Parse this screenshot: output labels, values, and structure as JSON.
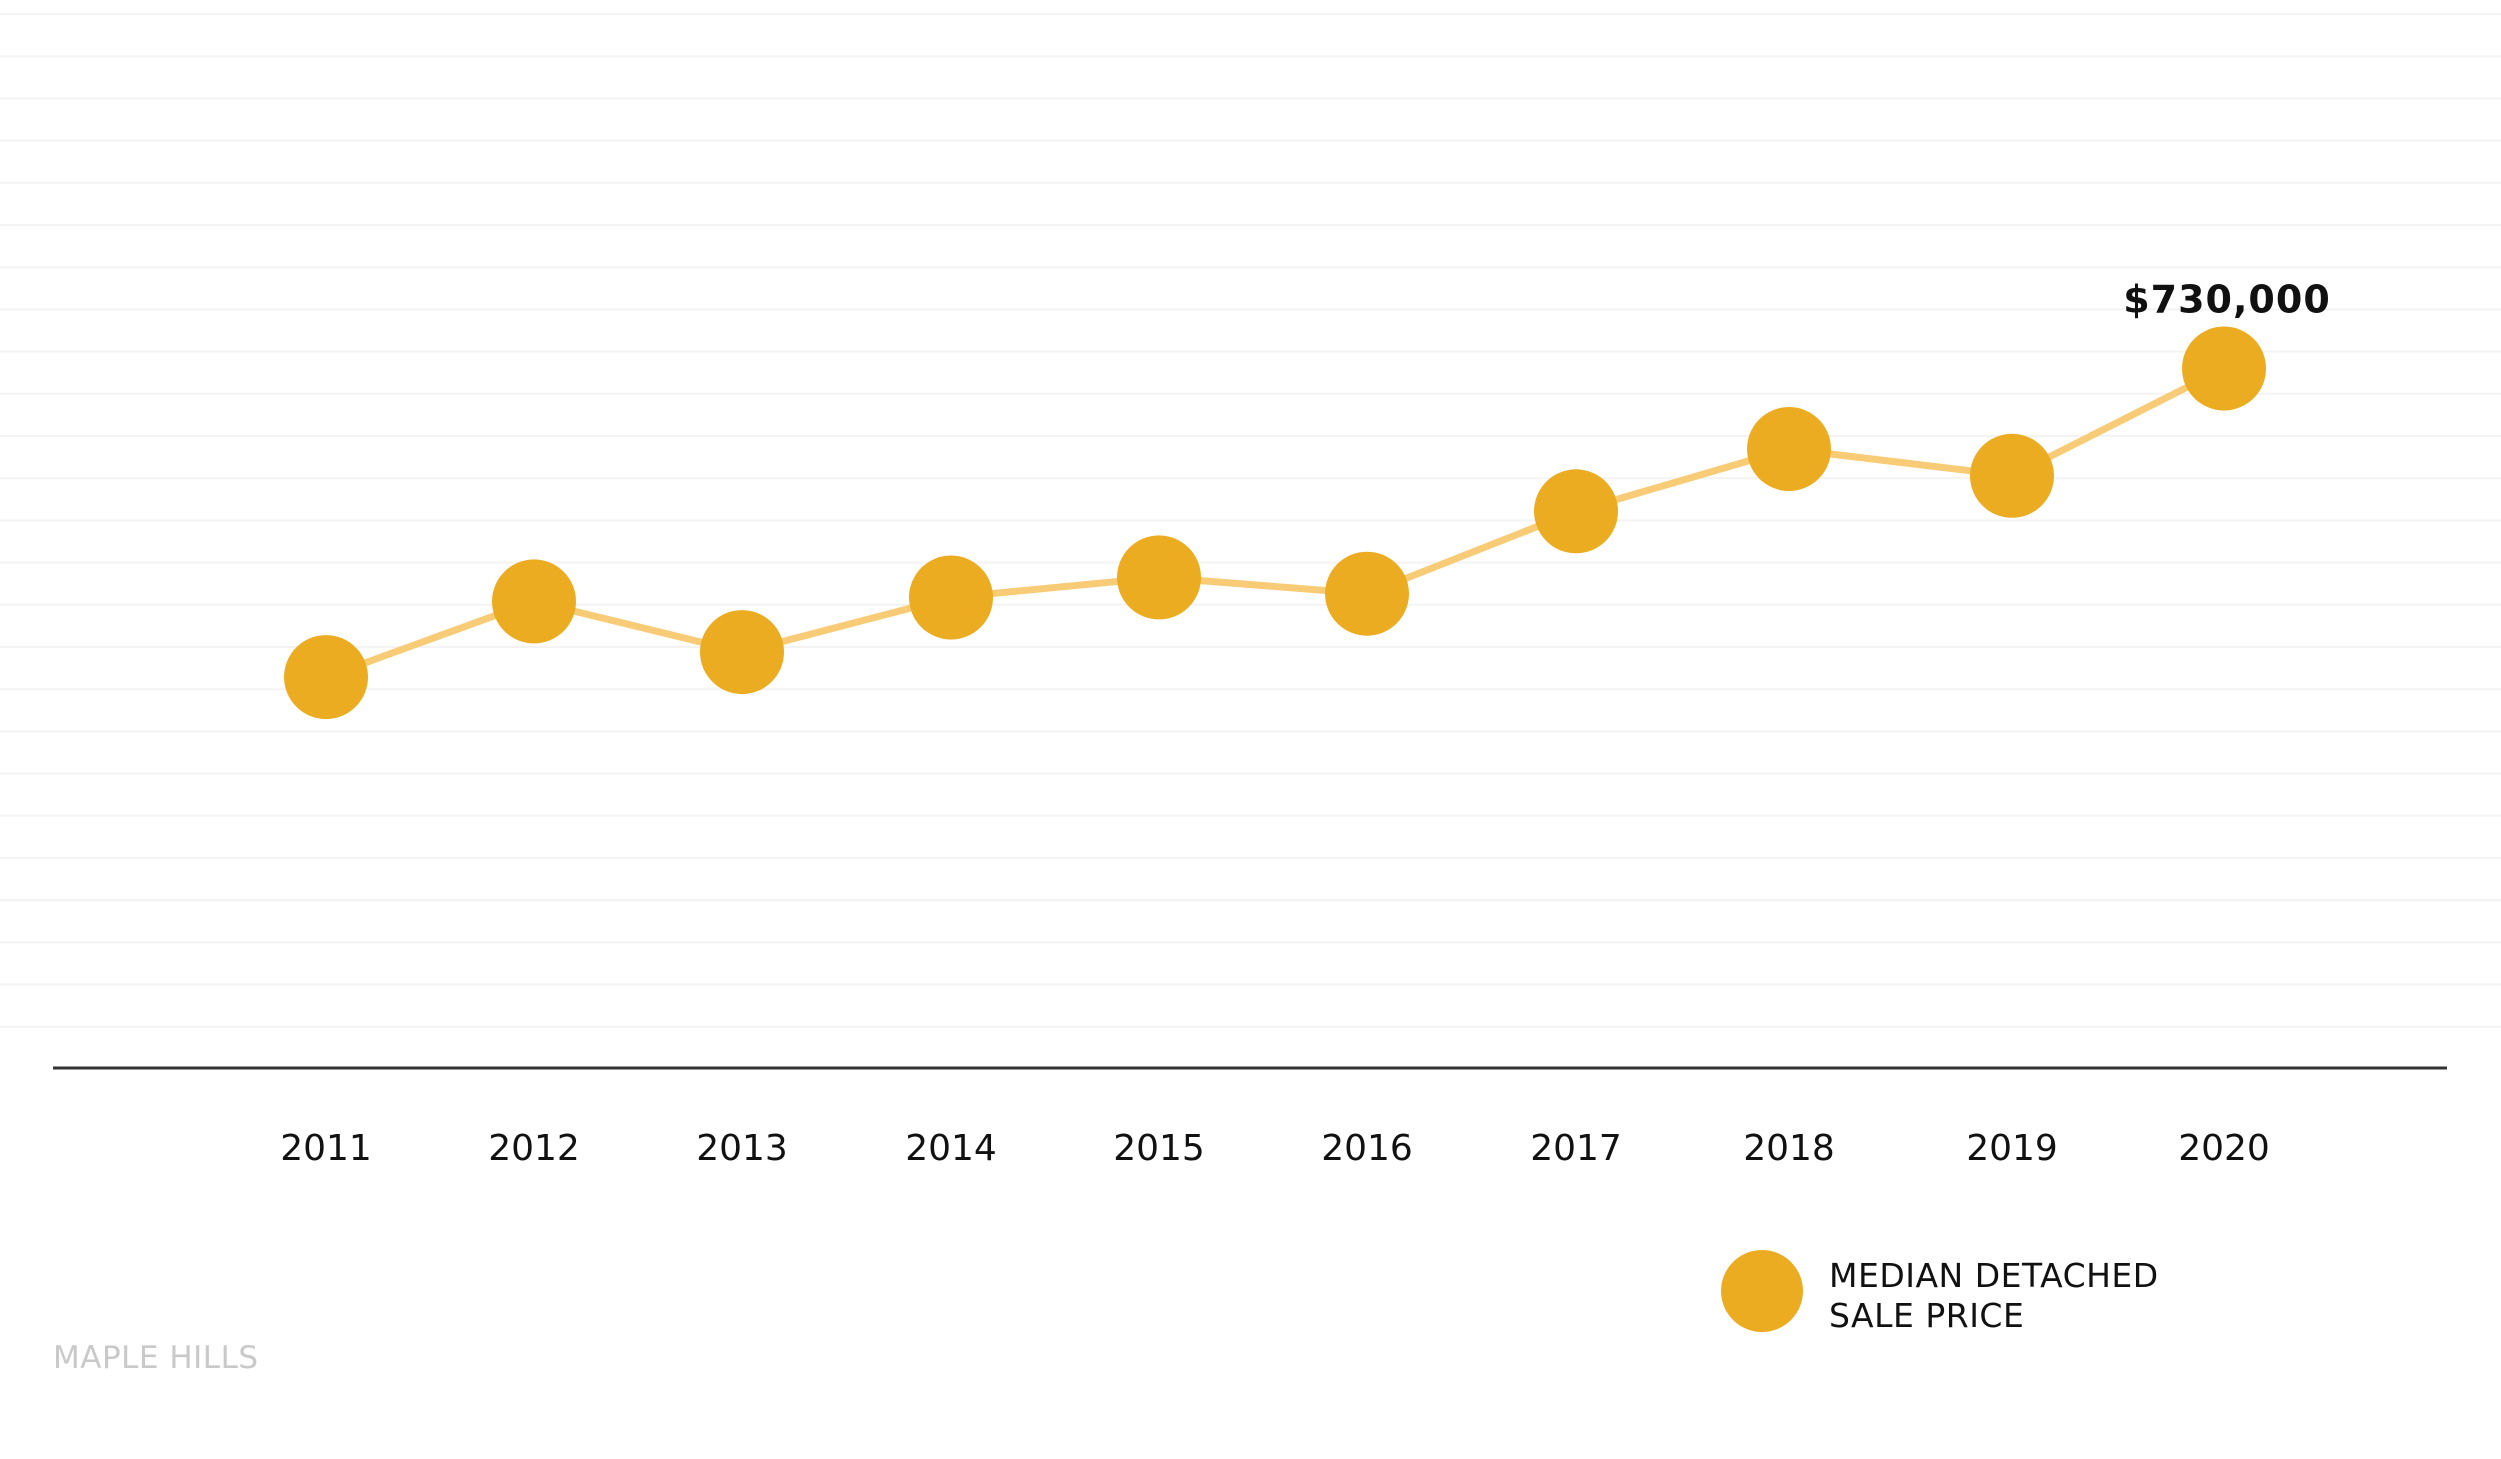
{
  "chart_data": {
    "type": "line",
    "categories": [
      "2011",
      "2012",
      "2013",
      "2014",
      "2015",
      "2016",
      "2017",
      "2018",
      "2019",
      "2020"
    ],
    "series": [
      {
        "name": "MEDIAN DETACHED SALE PRICE",
        "values": [
          408000,
          487000,
          434000,
          491000,
          512000,
          495000,
          581000,
          646000,
          618000,
          730000
        ],
        "point_color": "#ecac22",
        "line_color": "#f8cc77"
      }
    ],
    "annotations": [
      {
        "category": "2020",
        "text": "$730,000"
      }
    ],
    "ylim": [
      0,
      1100000
    ],
    "grid": true,
    "legend": {
      "position": "bottom-right",
      "label_lines": [
        "MEDIAN DETACHED",
        "SALE PRICE"
      ]
    },
    "footer": "MAPLE HILLS"
  }
}
